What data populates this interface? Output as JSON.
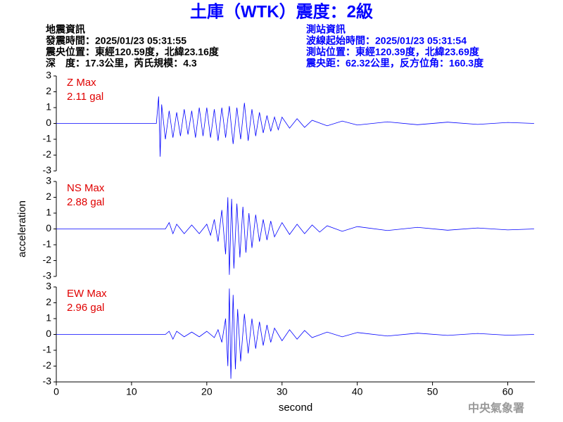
{
  "header": {
    "title": "土庫（WTK）震度：2級",
    "left": [
      "地震資訊",
      "發震時間：2025/01/23 05:31:55",
      "震央位置：東經120.59度，北緯23.16度",
      "深　度：17.3公里，芮氏規模：4.3"
    ],
    "right": [
      "測站資訊",
      "波線起始時間：2025/01/23 05:31:54",
      "測站位置：東經120.39度，北緯23.69度",
      "震央距：62.32公里，反方位角：160.3度"
    ],
    "footer": "中央氣象署"
  },
  "chart_data": [
    {
      "type": "line",
      "label": "Z Max",
      "max": "2.11 gal",
      "color": "#0000ff",
      "xlim": [
        0,
        63.6
      ],
      "ylim": [
        -3,
        3
      ],
      "yticks": [
        -3,
        -2,
        -1,
        0,
        1,
        2,
        3
      ],
      "x": [
        0,
        13.3,
        13.6,
        13.8,
        14,
        14.5,
        15,
        15.5,
        16,
        16.5,
        17,
        17.5,
        18,
        18.5,
        19,
        19.5,
        20,
        20.5,
        21,
        21.5,
        22,
        22.5,
        23,
        23.5,
        24,
        24.5,
        25,
        25.5,
        26,
        26.5,
        27,
        27.5,
        28,
        28.5,
        29,
        29.5,
        30,
        31,
        32,
        33,
        34,
        36,
        38,
        40,
        44,
        48,
        52,
        56,
        60,
        63.5
      ],
      "values": [
        0,
        0,
        1.7,
        -2.1,
        1.2,
        -1,
        0.8,
        -0.9,
        0.7,
        -0.8,
        0.9,
        -0.7,
        0.8,
        -0.9,
        1,
        -0.8,
        1,
        -0.9,
        0.9,
        -1.1,
        1,
        -0.9,
        1.1,
        -1.3,
        1,
        -1,
        1.3,
        -1.1,
        0.9,
        -0.8,
        0.7,
        -0.6,
        0.5,
        -0.5,
        0.4,
        -0.4,
        0.4,
        -0.3,
        0.3,
        -0.25,
        0.2,
        -0.15,
        0.15,
        -0.1,
        0.1,
        -0.08,
        0.08,
        -0.06,
        0.06,
        0
      ]
    },
    {
      "type": "line",
      "label": "NS Max",
      "max": "2.88 gal",
      "color": "#0000ff",
      "ylabel": "acceleration",
      "xlim": [
        0,
        63.6
      ],
      "ylim": [
        -3,
        3
      ],
      "yticks": [
        -3,
        -2,
        -1,
        0,
        1,
        2,
        3
      ],
      "x": [
        0,
        14.5,
        15,
        15.5,
        16,
        17,
        18,
        19,
        20,
        20.5,
        21,
        21.5,
        22,
        22.5,
        22.8,
        23,
        23.3,
        23.6,
        24,
        24.4,
        24.8,
        25.2,
        25.6,
        26,
        26.5,
        27,
        27.5,
        28,
        28.5,
        29,
        30,
        31,
        32,
        33,
        34,
        35,
        36,
        38,
        40,
        44,
        48,
        52,
        56,
        60,
        63.5
      ],
      "values": [
        0,
        0,
        0.4,
        -0.3,
        0.3,
        -0.3,
        0.25,
        -0.3,
        0.3,
        -0.4,
        0.6,
        -0.8,
        1.2,
        -1.6,
        2,
        -2.9,
        1.9,
        -2.5,
        1.6,
        -1.8,
        1.4,
        -1.5,
        1,
        -1.2,
        0.9,
        -0.8,
        0.6,
        -0.7,
        0.5,
        -0.5,
        0.4,
        -0.35,
        0.3,
        -0.3,
        0.25,
        -0.2,
        0.2,
        -0.15,
        0.15,
        -0.1,
        0.1,
        -0.08,
        0.06,
        -0.06,
        0
      ]
    },
    {
      "type": "line",
      "label": "EW Max",
      "max": "2.96 gal",
      "color": "#0000ff",
      "xlabel": "second",
      "xlim": [
        0,
        63.6
      ],
      "ylim": [
        -3,
        3
      ],
      "yticks": [
        -3,
        -2,
        -1,
        0,
        1,
        2,
        3
      ],
      "xticks": [
        0,
        10,
        20,
        30,
        40,
        50,
        60
      ],
      "x": [
        0,
        14.5,
        15,
        15.5,
        16,
        17,
        18,
        19,
        20,
        21,
        21.5,
        22,
        22.5,
        22.8,
        23,
        23.2,
        23.5,
        23.8,
        24.1,
        24.5,
        25,
        25.5,
        26,
        26.5,
        27,
        27.5,
        28,
        28.5,
        29,
        30,
        31,
        32,
        33,
        34,
        36,
        38,
        40,
        44,
        48,
        52,
        56,
        60,
        63.5
      ],
      "values": [
        0,
        0,
        0.2,
        -0.3,
        0.2,
        -0.15,
        0.15,
        -0.15,
        0.2,
        -0.2,
        0.3,
        -0.5,
        1,
        -2,
        2.9,
        -2.8,
        2.5,
        -2.2,
        1.6,
        -1.7,
        1.3,
        -1.2,
        1,
        -0.9,
        0.8,
        -0.7,
        0.6,
        -0.5,
        0.4,
        -0.4,
        0.3,
        -0.3,
        0.25,
        -0.2,
        0.15,
        -0.15,
        0.12,
        -0.1,
        0.08,
        -0.06,
        0.06,
        -0.05,
        0
      ]
    }
  ]
}
